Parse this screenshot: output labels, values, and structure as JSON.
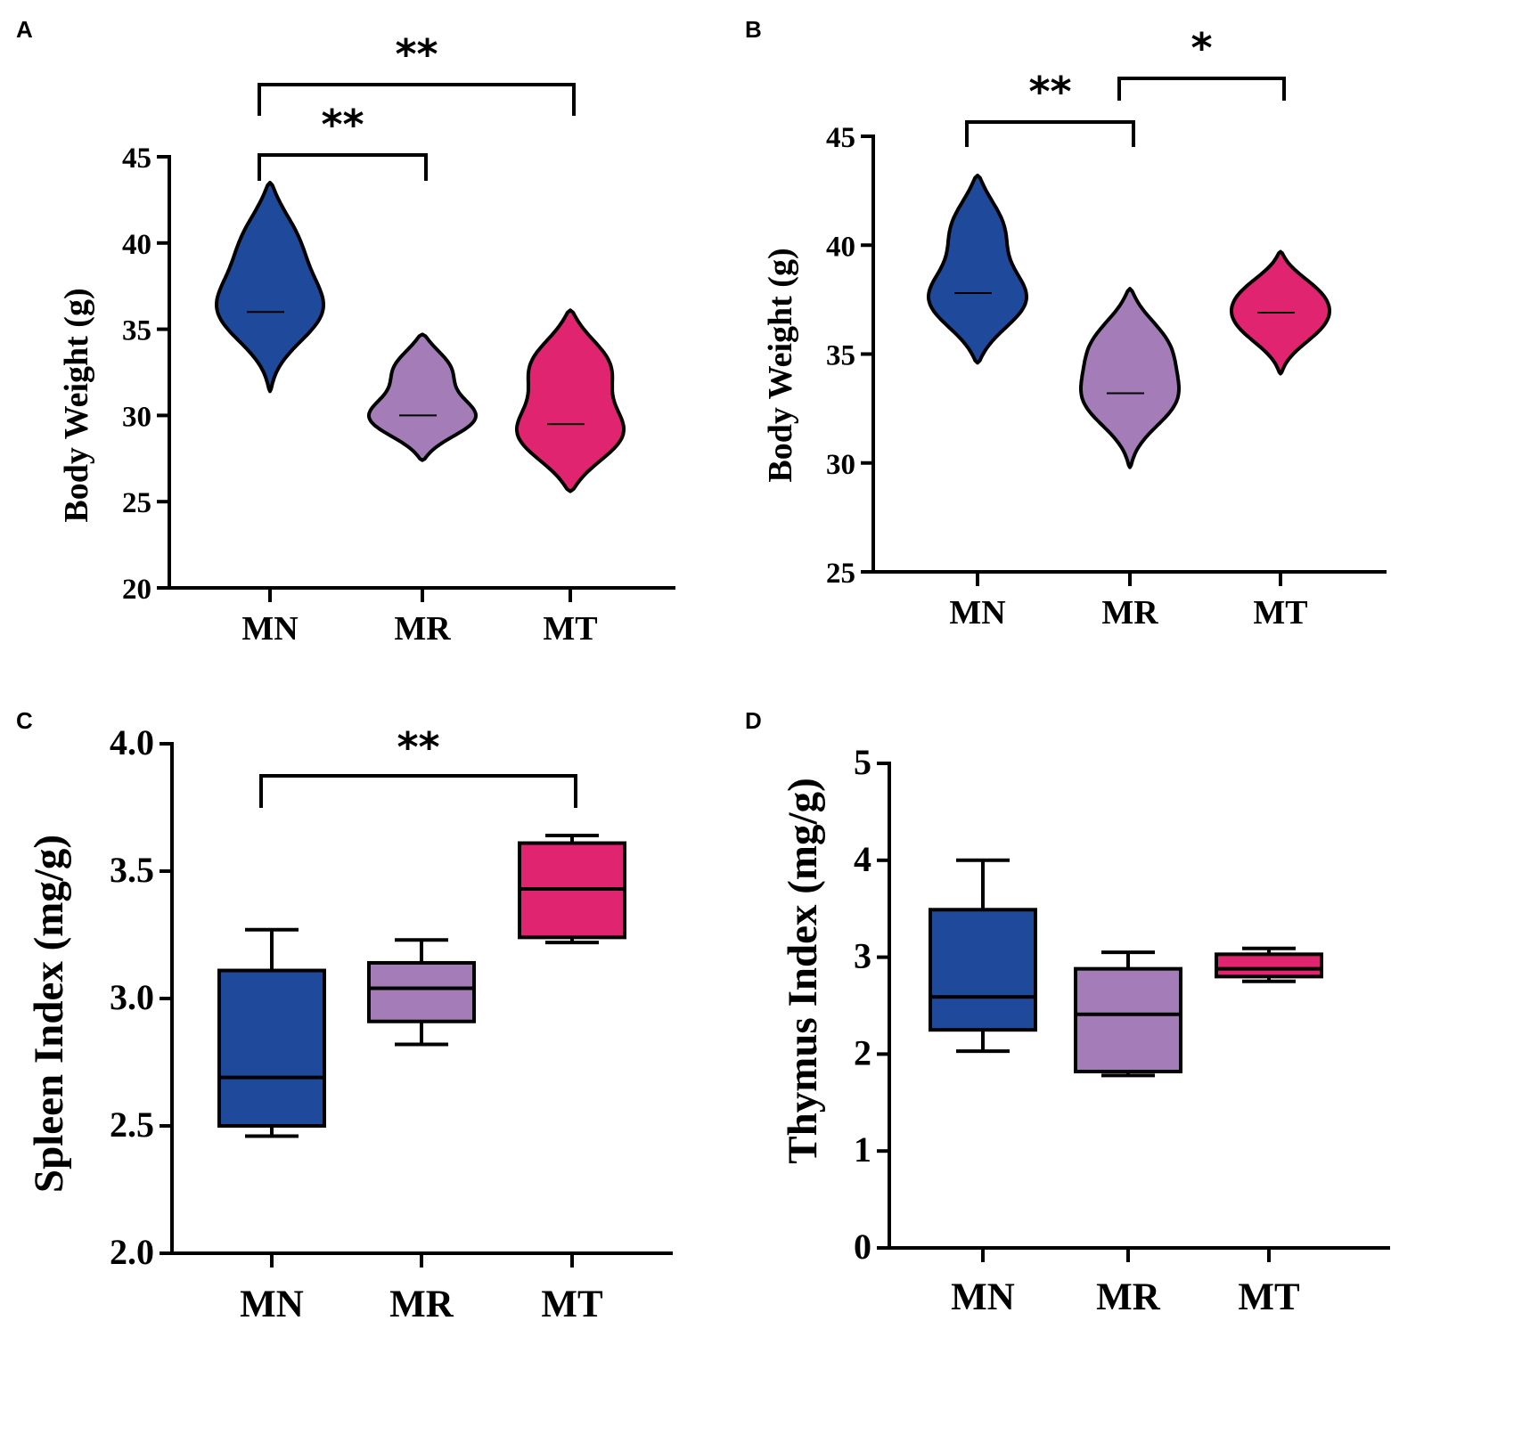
{
  "chart_data": [
    {
      "panel": "A",
      "type": "violin",
      "ylabel": "Body Weight (g)",
      "ylim": [
        20,
        45
      ],
      "yticks": [
        "20",
        "25",
        "30",
        "35",
        "40",
        "45"
      ],
      "categories": [
        "MN",
        "MR",
        "MT"
      ],
      "colors": [
        "#1f4a9c",
        "#a47db8",
        "#e0246f"
      ],
      "groups": [
        {
          "name": "MN",
          "min": 31.4,
          "max": 43.5,
          "median": 36.0,
          "modes": [
            {
              "y": 40.2,
              "w": 0.55
            },
            {
              "y": 36.0,
              "w": 1.0
            }
          ]
        },
        {
          "name": "MR",
          "min": 27.4,
          "max": 34.7,
          "median": 30.0,
          "modes": [
            {
              "y": 32.8,
              "w": 0.55
            },
            {
              "y": 29.8,
              "w": 1.0
            }
          ]
        },
        {
          "name": "MT",
          "min": 25.6,
          "max": 36.1,
          "median": 29.5,
          "modes": [
            {
              "y": 33.0,
              "w": 0.75
            },
            {
              "y": 28.8,
              "w": 1.0
            }
          ]
        }
      ],
      "significance": [
        {
          "from": "MN",
          "to": "MR",
          "label": "**"
        },
        {
          "from": "MN",
          "to": "MT",
          "label": "**"
        }
      ]
    },
    {
      "panel": "B",
      "type": "violin",
      "ylabel": "Body Weight (g)",
      "ylim": [
        25,
        45
      ],
      "yticks": [
        "25",
        "30",
        "35",
        "40",
        "45"
      ],
      "categories": [
        "MN",
        "MR",
        "MT"
      ],
      "colors": [
        "#1f4a9c",
        "#a47db8",
        "#e0246f"
      ],
      "groups": [
        {
          "name": "MN",
          "min": 34.6,
          "max": 43.2,
          "median": 37.8,
          "modes": [
            {
              "y": 40.9,
              "w": 0.55
            },
            {
              "y": 37.4,
              "w": 1.0
            }
          ]
        },
        {
          "name": "MR",
          "min": 29.8,
          "max": 38.0,
          "median": 33.2,
          "modes": [
            {
              "y": 35.5,
              "w": 0.85
            },
            {
              "y": 32.8,
              "w": 1.0
            }
          ]
        },
        {
          "name": "MT",
          "min": 34.1,
          "max": 39.7,
          "median": 36.9,
          "modes": [
            {
              "y": 38.0,
              "w": 0.8
            },
            {
              "y": 36.8,
              "w": 0.8
            },
            {
              "y": 35.8,
              "w": 0.55
            }
          ]
        }
      ],
      "significance": [
        {
          "from": "MN",
          "to": "MR",
          "label": "**"
        },
        {
          "from": "MR",
          "to": "MT",
          "label": "*"
        }
      ]
    },
    {
      "panel": "C",
      "type": "box",
      "ylabel": "Spleen Index (mg/g)",
      "ylim": [
        2.0,
        4.0
      ],
      "yticks": [
        "2.0",
        "2.5",
        "3.0",
        "3.5",
        "4.0"
      ],
      "categories": [
        "MN",
        "MR",
        "MT"
      ],
      "colors": [
        "#1f4a9c",
        "#a47db8",
        "#e0246f"
      ],
      "groups": [
        {
          "name": "MN",
          "whisker_low": 2.46,
          "q1": 2.5,
          "median": 2.69,
          "q3": 3.11,
          "whisker_high": 3.27
        },
        {
          "name": "MR",
          "whisker_low": 2.82,
          "q1": 2.91,
          "median": 3.04,
          "q3": 3.14,
          "whisker_high": 3.23
        },
        {
          "name": "MT",
          "whisker_low": 3.22,
          "q1": 3.24,
          "median": 3.43,
          "q3": 3.61,
          "whisker_high": 3.64
        }
      ],
      "significance": [
        {
          "from": "MN",
          "to": "MT",
          "label": "**"
        }
      ]
    },
    {
      "panel": "D",
      "type": "box",
      "ylabel": "Thymus Index (mg/g)",
      "ylim": [
        0,
        5
      ],
      "yticks": [
        "0",
        "1",
        "2",
        "3",
        "4",
        "5"
      ],
      "categories": [
        "MN",
        "MR",
        "MT"
      ],
      "colors": [
        "#1f4a9c",
        "#a47db8",
        "#e0246f"
      ],
      "groups": [
        {
          "name": "MN",
          "whisker_low": 2.03,
          "q1": 2.25,
          "median": 2.59,
          "q3": 3.49,
          "whisker_high": 4.0
        },
        {
          "name": "MR",
          "whisker_low": 1.78,
          "q1": 1.82,
          "median": 2.41,
          "q3": 2.88,
          "whisker_high": 3.05
        },
        {
          "name": "MT",
          "whisker_low": 2.75,
          "q1": 2.8,
          "median": 2.88,
          "q3": 3.03,
          "whisker_high": 3.09
        }
      ],
      "significance": []
    }
  ]
}
